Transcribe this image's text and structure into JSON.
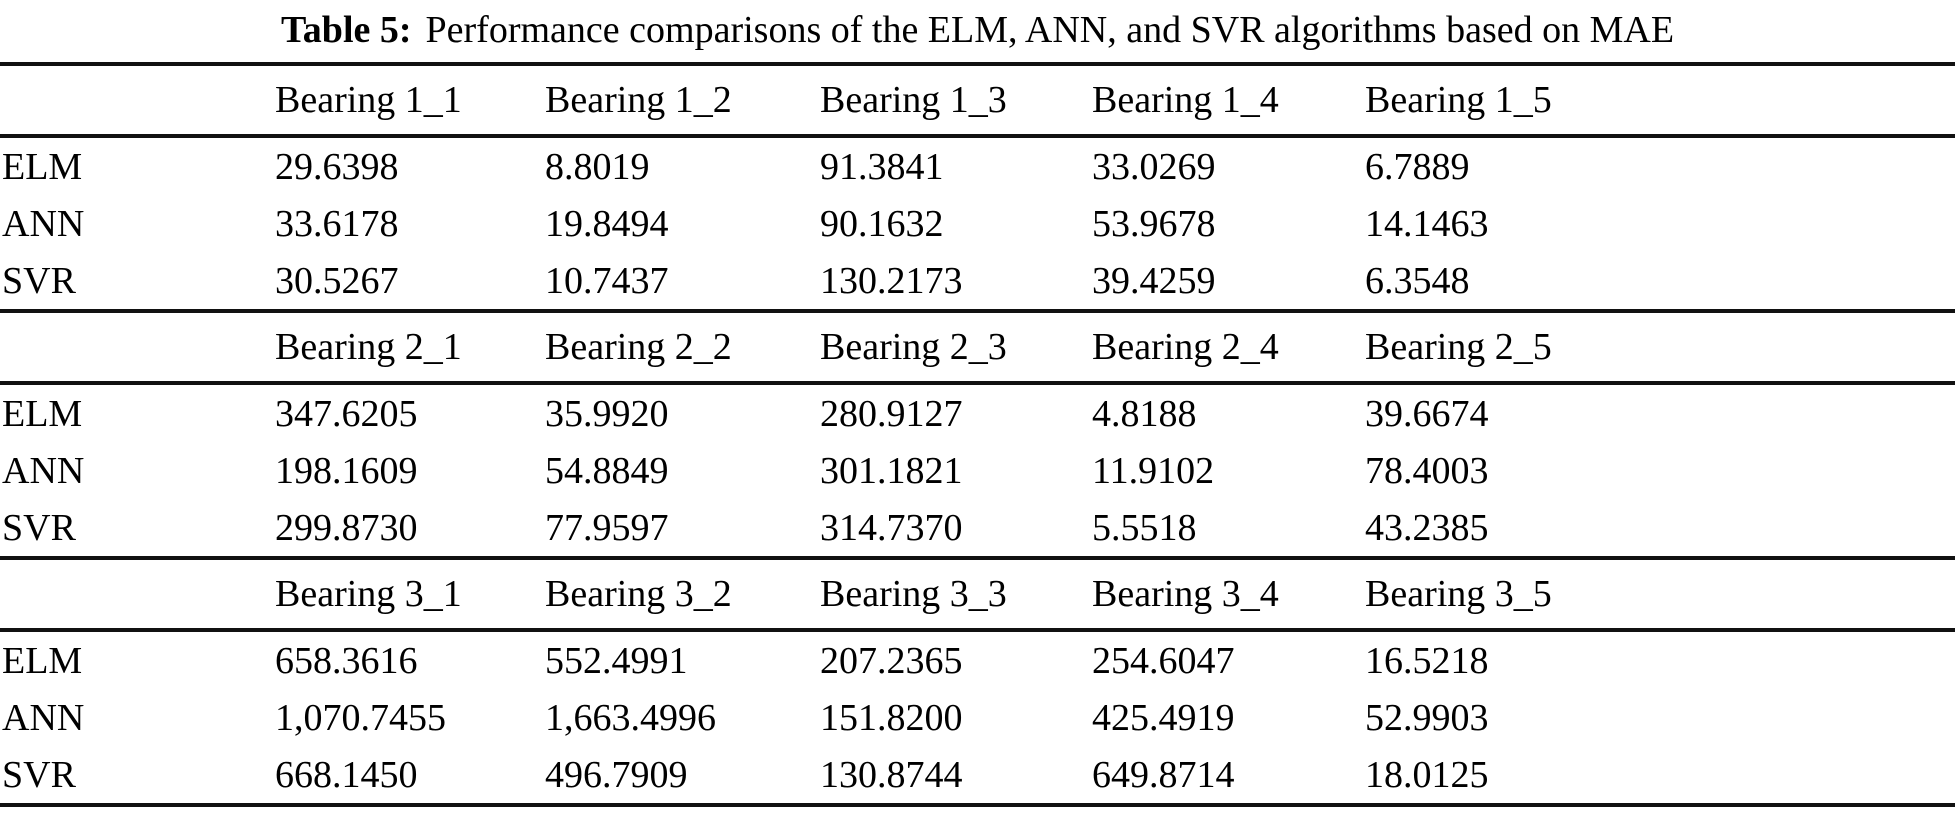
{
  "title": {
    "label": "Table 5:",
    "text": "Performance comparisons of the ELM, ANN, and SVR algorithms based on MAE"
  },
  "chart_data": {
    "type": "table",
    "title": "Table 5: Performance comparisons of the ELM, ANN, and SVR algorithms based on MAE",
    "sections": [
      {
        "headers": [
          "Bearing 1_1",
          "Bearing 1_2",
          "Bearing 1_3",
          "Bearing 1_4",
          "Bearing 1_5"
        ],
        "rows": [
          {
            "label": "ELM",
            "values": [
              "29.6398",
              "8.8019",
              "91.3841",
              "33.0269",
              "6.7889"
            ]
          },
          {
            "label": "ANN",
            "values": [
              "33.6178",
              "19.8494",
              "90.1632",
              "53.9678",
              "14.1463"
            ]
          },
          {
            "label": "SVR",
            "values": [
              "30.5267",
              "10.7437",
              "130.2173",
              "39.4259",
              "6.3548"
            ]
          }
        ]
      },
      {
        "headers": [
          "Bearing 2_1",
          "Bearing 2_2",
          "Bearing 2_3",
          "Bearing 2_4",
          "Bearing 2_5"
        ],
        "rows": [
          {
            "label": "ELM",
            "values": [
              "347.6205",
              "35.9920",
              "280.9127",
              "4.8188",
              "39.6674"
            ]
          },
          {
            "label": "ANN",
            "values": [
              "198.1609",
              "54.8849",
              "301.1821",
              "11.9102",
              "78.4003"
            ]
          },
          {
            "label": "SVR",
            "values": [
              "299.8730",
              "77.9597",
              "314.7370",
              "5.5518",
              "43.2385"
            ]
          }
        ]
      },
      {
        "headers": [
          "Bearing 3_1",
          "Bearing 3_2",
          "Bearing 3_3",
          "Bearing 3_4",
          "Bearing 3_5"
        ],
        "rows": [
          {
            "label": "ELM",
            "values": [
              "658.3616",
              "552.4991",
              "207.2365",
              "254.6047",
              "16.5218"
            ]
          },
          {
            "label": "ANN",
            "values": [
              "1,070.7455",
              "1,663.4996",
              "151.8200",
              "425.4919",
              "52.9903"
            ]
          },
          {
            "label": "SVR",
            "values": [
              "668.1450",
              "496.7909",
              "130.8744",
              "649.8714",
              "18.0125"
            ]
          }
        ]
      }
    ]
  }
}
